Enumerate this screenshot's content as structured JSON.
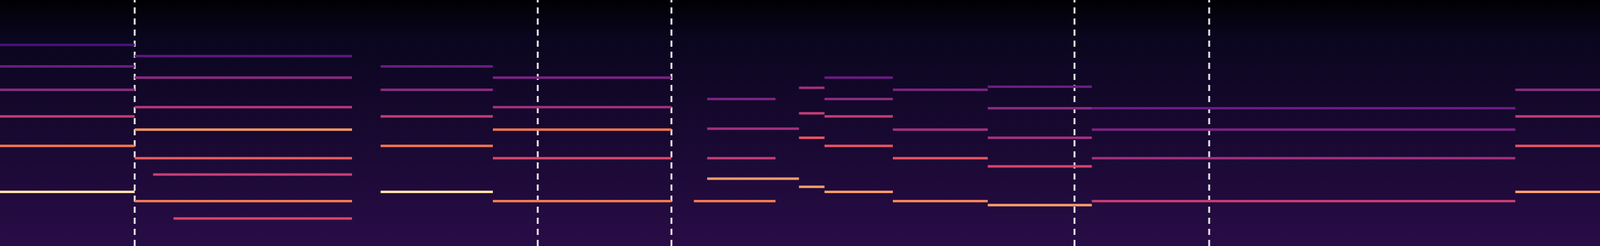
{
  "chart_data": {
    "type": "line",
    "grid": false,
    "tick_labels": false,
    "xlim": [
      0,
      1568
    ],
    "ylim": [
      0,
      241
    ],
    "vlines": [
      132,
      527,
      658,
      1053,
      1185
    ],
    "series": [
      {
        "color": "#fde2a6",
        "x": [
          0,
          132
        ],
        "values": [
          53,
          53
        ]
      },
      {
        "color": "#f37651",
        "x": [
          0,
          132
        ],
        "values": [
          98,
          98
        ]
      },
      {
        "color": "#c43c75",
        "x": [
          0,
          132
        ],
        "values": [
          127,
          127
        ]
      },
      {
        "color": "#8c2981",
        "x": [
          0,
          132
        ],
        "values": [
          153,
          153
        ]
      },
      {
        "color": "#6a1c81",
        "x": [
          0,
          132
        ],
        "values": [
          176,
          176
        ]
      },
      {
        "color": "#4a1079",
        "x": [
          0,
          132
        ],
        "values": [
          197,
          197
        ]
      },
      {
        "color": "#f07a52",
        "x": [
          132,
          345
        ],
        "values": [
          44,
          44
        ]
      },
      {
        "color": "#f89a5f",
        "x": [
          132,
          345
        ],
        "values": [
          114,
          114
        ]
      },
      {
        "color": "#e85a62",
        "x": [
          132,
          345
        ],
        "values": [
          86,
          86
        ]
      },
      {
        "color": "#c83e73",
        "x": [
          150,
          345
        ],
        "values": [
          70,
          70
        ]
      },
      {
        "color": "#d8456c",
        "x": [
          170,
          345
        ],
        "values": [
          27,
          27
        ]
      },
      {
        "color": "#b5367a",
        "x": [
          132,
          345
        ],
        "values": [
          136,
          136
        ]
      },
      {
        "color": "#8c2981",
        "x": [
          132,
          345
        ],
        "values": [
          165,
          165
        ]
      },
      {
        "color": "#5e177f",
        "x": [
          132,
          345
        ],
        "values": [
          186,
          186
        ]
      },
      {
        "color": "#fde2a6",
        "x": [
          373,
          483
        ],
        "values": [
          53,
          53
        ]
      },
      {
        "color": "#f37651",
        "x": [
          373,
          483
        ],
        "values": [
          98,
          98
        ]
      },
      {
        "color": "#c43c75",
        "x": [
          373,
          483
        ],
        "values": [
          127,
          127
        ]
      },
      {
        "color": "#8c2981",
        "x": [
          373,
          483
        ],
        "values": [
          153,
          153
        ]
      },
      {
        "color": "#6a1c81",
        "x": [
          373,
          483
        ],
        "values": [
          176,
          176
        ]
      },
      {
        "color": "#f07a52",
        "x": [
          483,
          658
        ],
        "values": [
          44,
          44
        ]
      },
      {
        "color": "#f37651",
        "x": [
          483,
          658
        ],
        "values": [
          114,
          114
        ]
      },
      {
        "color": "#d8456c",
        "x": [
          483,
          658
        ],
        "values": [
          86,
          86
        ]
      },
      {
        "color": "#a3307e",
        "x": [
          483,
          658
        ],
        "values": [
          136,
          136
        ]
      },
      {
        "color": "#7b2382",
        "x": [
          483,
          658
        ],
        "values": [
          165,
          165
        ]
      },
      {
        "color": "#f07a52",
        "x": [
          680,
          760
        ],
        "values": [
          44,
          44
        ]
      },
      {
        "color": "#fb9b6b",
        "x": [
          693,
          783
        ],
        "values": [
          66,
          66
        ]
      },
      {
        "color": "#c43c75",
        "x": [
          693,
          760
        ],
        "values": [
          86,
          86
        ]
      },
      {
        "color": "#a3307e",
        "x": [
          693,
          783
        ],
        "values": [
          115,
          115
        ]
      },
      {
        "color": "#7b2382",
        "x": [
          693,
          760
        ],
        "values": [
          144,
          144
        ]
      },
      {
        "color": "#fb9b6b",
        "x": [
          783,
          808
        ],
        "values": [
          58,
          58
        ]
      },
      {
        "color": "#e85462",
        "x": [
          783,
          808
        ],
        "values": [
          106,
          106
        ]
      },
      {
        "color": "#c43c75",
        "x": [
          783,
          808
        ],
        "values": [
          130,
          130
        ]
      },
      {
        "color": "#a3307e",
        "x": [
          783,
          808
        ],
        "values": [
          155,
          155
        ]
      },
      {
        "color": "#fb9b6b",
        "x": [
          808,
          875
        ],
        "values": [
          53,
          53
        ]
      },
      {
        "color": "#e85462",
        "x": [
          808,
          875
        ],
        "values": [
          98,
          98
        ]
      },
      {
        "color": "#c43c75",
        "x": [
          808,
          875
        ],
        "values": [
          127,
          127
        ]
      },
      {
        "color": "#8c2981",
        "x": [
          808,
          875
        ],
        "values": [
          144,
          144
        ]
      },
      {
        "color": "#6a1c81",
        "x": [
          808,
          875
        ],
        "values": [
          165,
          165
        ]
      },
      {
        "color": "#f8845d",
        "x": [
          875,
          968
        ],
        "values": [
          44,
          44
        ]
      },
      {
        "color": "#e85462",
        "x": [
          875,
          968
        ],
        "values": [
          86,
          86
        ]
      },
      {
        "color": "#a3307e",
        "x": [
          875,
          968
        ],
        "values": [
          114,
          114
        ]
      },
      {
        "color": "#7b2382",
        "x": [
          875,
          968
        ],
        "values": [
          153,
          153
        ]
      },
      {
        "color": "#fca06f",
        "x": [
          968,
          1070
        ],
        "values": [
          40,
          40
        ]
      },
      {
        "color": "#d8456c",
        "x": [
          968,
          1070
        ],
        "values": [
          78,
          78
        ]
      },
      {
        "color": "#a3307e",
        "x": [
          968,
          1070
        ],
        "values": [
          106,
          106
        ]
      },
      {
        "color": "#8c2981",
        "x": [
          968,
          1070
        ],
        "values": [
          135,
          135
        ]
      },
      {
        "color": "#6a1c81",
        "x": [
          968,
          1070
        ],
        "values": [
          156,
          156
        ]
      },
      {
        "color": "#c43c75",
        "x": [
          1070,
          1485
        ],
        "values": [
          44,
          44
        ]
      },
      {
        "color": "#a3307e",
        "x": [
          1070,
          1485
        ],
        "values": [
          86,
          86
        ]
      },
      {
        "color": "#7b2382",
        "x": [
          1070,
          1485
        ],
        "values": [
          114,
          114
        ]
      },
      {
        "color": "#6a1c81",
        "x": [
          1070,
          1485
        ],
        "values": [
          135,
          135
        ]
      },
      {
        "color": "#fca06f",
        "x": [
          1485,
          1568
        ],
        "values": [
          53,
          53
        ]
      },
      {
        "color": "#e85462",
        "x": [
          1485,
          1568
        ],
        "values": [
          98,
          98
        ]
      },
      {
        "color": "#c43c75",
        "x": [
          1485,
          1568
        ],
        "values": [
          127,
          127
        ]
      },
      {
        "color": "#8c2981",
        "x": [
          1485,
          1568
        ],
        "values": [
          153,
          153
        ]
      }
    ]
  }
}
